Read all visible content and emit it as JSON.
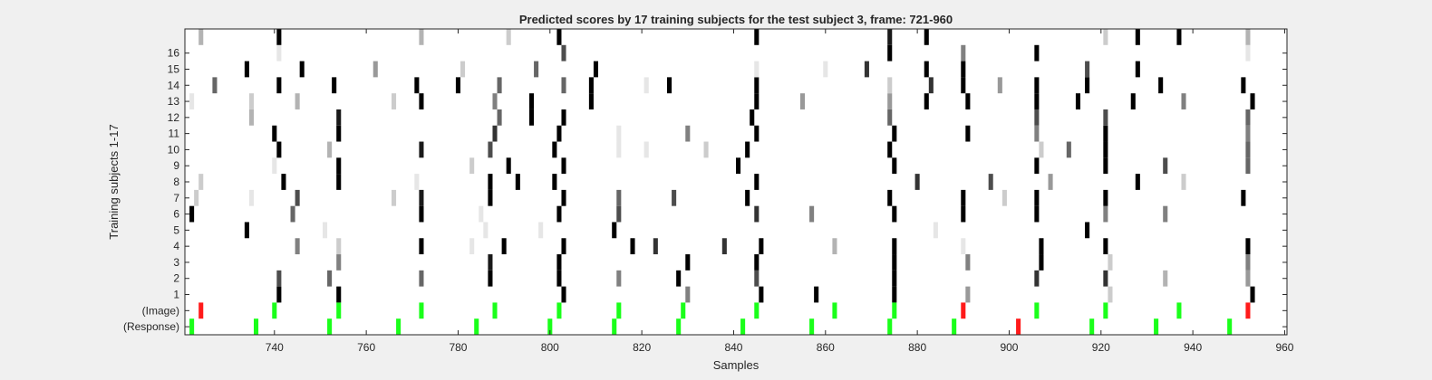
{
  "chart_data": {
    "type": "heatmap",
    "title": "Predicted scores by 17 training subjects for the test subject 3, frame: 721-960",
    "xlabel": "Samples",
    "ylabel": "Training subjects 1-17",
    "xlim": [
      721,
      960
    ],
    "xticks": [
      740,
      760,
      780,
      800,
      820,
      840,
      860,
      880,
      900,
      920,
      940,
      960
    ],
    "grid": false,
    "legend": "none",
    "row_labels": [
      "(Response)",
      "(Image)",
      "1",
      "2",
      "3",
      "4",
      "5",
      "6",
      "7",
      "8",
      "9",
      "10",
      "11",
      "12",
      "13",
      "14",
      "15",
      "16",
      ""
    ],
    "marker_colors": {
      "match": "#1aff1a",
      "mismatch": "#ff1a1a"
    },
    "response_markers": [
      {
        "x": 722,
        "color": "match"
      },
      {
        "x": 736,
        "color": "match"
      },
      {
        "x": 752,
        "color": "match"
      },
      {
        "x": 767,
        "color": "match"
      },
      {
        "x": 784,
        "color": "match"
      },
      {
        "x": 800,
        "color": "match"
      },
      {
        "x": 814,
        "color": "match"
      },
      {
        "x": 828,
        "color": "match"
      },
      {
        "x": 842,
        "color": "match"
      },
      {
        "x": 857,
        "color": "match"
      },
      {
        "x": 874,
        "color": "match"
      },
      {
        "x": 888,
        "color": "match"
      },
      {
        "x": 902,
        "color": "mismatch"
      },
      {
        "x": 918,
        "color": "match"
      },
      {
        "x": 932,
        "color": "match"
      },
      {
        "x": 948,
        "color": "match"
      }
    ],
    "image_markers": [
      {
        "x": 724,
        "color": "mismatch"
      },
      {
        "x": 740,
        "color": "match"
      },
      {
        "x": 754,
        "color": "match"
      },
      {
        "x": 772,
        "color": "match"
      },
      {
        "x": 788,
        "color": "match"
      },
      {
        "x": 802,
        "color": "match"
      },
      {
        "x": 815,
        "color": "match"
      },
      {
        "x": 829,
        "color": "match"
      },
      {
        "x": 845,
        "color": "match"
      },
      {
        "x": 862,
        "color": "match"
      },
      {
        "x": 875,
        "color": "match"
      },
      {
        "x": 890,
        "color": "mismatch"
      },
      {
        "x": 906,
        "color": "match"
      },
      {
        "x": 921,
        "color": "match"
      },
      {
        "x": 937,
        "color": "match"
      },
      {
        "x": 952,
        "color": "mismatch"
      }
    ],
    "subject_scores": [
      {
        "subject": 1,
        "cells": [
          [
            741,
            1.0
          ],
          [
            754,
            1.0
          ],
          [
            803,
            1.0
          ],
          [
            830,
            0.5
          ],
          [
            846,
            1.0
          ],
          [
            858,
            1.0
          ],
          [
            875,
            1.0
          ],
          [
            891,
            0.4
          ],
          [
            922,
            0.2
          ],
          [
            953,
            1.0
          ]
        ]
      },
      {
        "subject": 2,
        "cells": [
          [
            741,
            0.7
          ],
          [
            752,
            0.6
          ],
          [
            772,
            0.6
          ],
          [
            787,
            1.0
          ],
          [
            802,
            1.0
          ],
          [
            815,
            0.5
          ],
          [
            828,
            1.0
          ],
          [
            845,
            0.7
          ],
          [
            875,
            1.0
          ],
          [
            906,
            0.8
          ],
          [
            921,
            0.8
          ],
          [
            934,
            0.3
          ],
          [
            952,
            0.4
          ]
        ]
      },
      {
        "subject": 3,
        "cells": [
          [
            754,
            0.5
          ],
          [
            787,
            0.9
          ],
          [
            802,
            1.0
          ],
          [
            830,
            1.0
          ],
          [
            845,
            1.0
          ],
          [
            875,
            1.0
          ],
          [
            891,
            0.5
          ],
          [
            907,
            1.0
          ],
          [
            922,
            0.2
          ],
          [
            952,
            0.5
          ]
        ]
      },
      {
        "subject": 4,
        "cells": [
          [
            745,
            0.5
          ],
          [
            754,
            0.2
          ],
          [
            772,
            1.0
          ],
          [
            783,
            0.1
          ],
          [
            790,
            1.0
          ],
          [
            803,
            1.0
          ],
          [
            818,
            1.0
          ],
          [
            823,
            0.8
          ],
          [
            838,
            0.8
          ],
          [
            846,
            1.0
          ],
          [
            862,
            0.3
          ],
          [
            875,
            1.0
          ],
          [
            890,
            0.1
          ],
          [
            907,
            1.0
          ],
          [
            921,
            1.0
          ],
          [
            952,
            1.0
          ]
        ]
      },
      {
        "subject": 5,
        "cells": [
          [
            734,
            1.0
          ],
          [
            751,
            0.1
          ],
          [
            786,
            0.1
          ],
          [
            798,
            0.1
          ],
          [
            814,
            1.0
          ],
          [
            884,
            0.1
          ],
          [
            917,
            1.0
          ]
        ]
      },
      {
        "subject": 6,
        "cells": [
          [
            722,
            1.0
          ],
          [
            744,
            0.6
          ],
          [
            772,
            1.0
          ],
          [
            785,
            0.1
          ],
          [
            802,
            1.0
          ],
          [
            815,
            0.7
          ],
          [
            845,
            0.8
          ],
          [
            857,
            0.5
          ],
          [
            875,
            1.0
          ],
          [
            890,
            1.0
          ],
          [
            906,
            1.0
          ],
          [
            921,
            0.5
          ],
          [
            934,
            0.5
          ]
        ]
      },
      {
        "subject": 7,
        "cells": [
          [
            723,
            0.2
          ],
          [
            735,
            0.1
          ],
          [
            745,
            0.7
          ],
          [
            766,
            0.2
          ],
          [
            772,
            0.9
          ],
          [
            787,
            1.0
          ],
          [
            803,
            1.0
          ],
          [
            815,
            0.6
          ],
          [
            827,
            0.7
          ],
          [
            843,
            1.0
          ],
          [
            874,
            1.0
          ],
          [
            890,
            1.0
          ],
          [
            899,
            0.2
          ],
          [
            906,
            1.0
          ],
          [
            921,
            1.0
          ],
          [
            951,
            1.0
          ]
        ]
      },
      {
        "subject": 8,
        "cells": [
          [
            724,
            0.2
          ],
          [
            742,
            1.0
          ],
          [
            754,
            1.0
          ],
          [
            771,
            0.1
          ],
          [
            787,
            1.0
          ],
          [
            793,
            1.0
          ],
          [
            801,
            1.0
          ],
          [
            845,
            1.0
          ],
          [
            880,
            0.8
          ],
          [
            896,
            0.7
          ],
          [
            909,
            0.4
          ],
          [
            928,
            1.0
          ],
          [
            938,
            0.2
          ]
        ]
      },
      {
        "subject": 9,
        "cells": [
          [
            740,
            0.1
          ],
          [
            754,
            1.0
          ],
          [
            783,
            0.2
          ],
          [
            791,
            1.0
          ],
          [
            803,
            1.0
          ],
          [
            841,
            1.0
          ],
          [
            875,
            1.0
          ],
          [
            906,
            1.0
          ],
          [
            921,
            1.0
          ],
          [
            934,
            0.7
          ],
          [
            952,
            0.6
          ]
        ]
      },
      {
        "subject": 10,
        "cells": [
          [
            741,
            1.0
          ],
          [
            752,
            0.3
          ],
          [
            772,
            0.9
          ],
          [
            787,
            0.7
          ],
          [
            801,
            1.0
          ],
          [
            815,
            0.1
          ],
          [
            821,
            0.1
          ],
          [
            834,
            0.2
          ],
          [
            843,
            1.0
          ],
          [
            874,
            1.0
          ],
          [
            907,
            0.2
          ],
          [
            913,
            0.6
          ],
          [
            921,
            1.0
          ],
          [
            952,
            0.6
          ]
        ]
      },
      {
        "subject": 11,
        "cells": [
          [
            740,
            1.0
          ],
          [
            754,
            1.0
          ],
          [
            788,
            0.8
          ],
          [
            802,
            1.0
          ],
          [
            815,
            0.1
          ],
          [
            830,
            0.5
          ],
          [
            845,
            1.0
          ],
          [
            875,
            1.0
          ],
          [
            891,
            1.0
          ],
          [
            906,
            0.5
          ],
          [
            921,
            1.0
          ],
          [
            952,
            0.5
          ]
        ]
      },
      {
        "subject": 12,
        "cells": [
          [
            735,
            0.3
          ],
          [
            754,
            0.9
          ],
          [
            789,
            0.6
          ],
          [
            796,
            1.0
          ],
          [
            803,
            1.0
          ],
          [
            844,
            1.0
          ],
          [
            874,
            0.6
          ],
          [
            906,
            0.7
          ],
          [
            921,
            0.7
          ],
          [
            952,
            0.6
          ]
        ]
      },
      {
        "subject": 13,
        "cells": [
          [
            722,
            0.1
          ],
          [
            735,
            0.2
          ],
          [
            745,
            0.3
          ],
          [
            766,
            0.2
          ],
          [
            772,
            1.0
          ],
          [
            788,
            0.5
          ],
          [
            796,
            1.0
          ],
          [
            809,
            1.0
          ],
          [
            845,
            1.0
          ],
          [
            855,
            0.4
          ],
          [
            874,
            0.4
          ],
          [
            882,
            1.0
          ],
          [
            891,
            1.0
          ],
          [
            906,
            1.0
          ],
          [
            915,
            1.0
          ],
          [
            927,
            1.0
          ],
          [
            938,
            0.5
          ],
          [
            953,
            1.0
          ]
        ]
      },
      {
        "subject": 14,
        "cells": [
          [
            727,
            0.6
          ],
          [
            741,
            1.0
          ],
          [
            753,
            1.0
          ],
          [
            771,
            1.0
          ],
          [
            780,
            1.0
          ],
          [
            789,
            0.6
          ],
          [
            803,
            0.6
          ],
          [
            809,
            1.0
          ],
          [
            821,
            0.1
          ],
          [
            826,
            1.0
          ],
          [
            845,
            1.0
          ],
          [
            874,
            0.2
          ],
          [
            883,
            0.8
          ],
          [
            890,
            1.0
          ],
          [
            898,
            0.4
          ],
          [
            906,
            1.0
          ],
          [
            917,
            1.0
          ],
          [
            933,
            1.0
          ],
          [
            951,
            1.0
          ]
        ]
      },
      {
        "subject": 15,
        "cells": [
          [
            734,
            1.0
          ],
          [
            746,
            1.0
          ],
          [
            762,
            0.4
          ],
          [
            781,
            0.2
          ],
          [
            797,
            0.6
          ],
          [
            810,
            1.0
          ],
          [
            845,
            0.1
          ],
          [
            860,
            0.1
          ],
          [
            869,
            0.8
          ],
          [
            882,
            1.0
          ],
          [
            890,
            1.0
          ],
          [
            917,
            0.7
          ],
          [
            928,
            1.0
          ]
        ]
      },
      {
        "subject": 16,
        "cells": [
          [
            741,
            0.1
          ],
          [
            803,
            0.7
          ],
          [
            874,
            1.0
          ],
          [
            890,
            0.5
          ],
          [
            906,
            1.0
          ],
          [
            952,
            0.1
          ]
        ]
      },
      {
        "subject": 17,
        "cells": [
          [
            724,
            0.3
          ],
          [
            741,
            1.0
          ],
          [
            772,
            0.3
          ],
          [
            791,
            0.2
          ],
          [
            802,
            1.0
          ],
          [
            845,
            1.0
          ],
          [
            874,
            0.9
          ],
          [
            882,
            1.0
          ],
          [
            921,
            0.2
          ],
          [
            928,
            1.0
          ],
          [
            937,
            1.0
          ],
          [
            952,
            0.3
          ]
        ]
      }
    ]
  }
}
